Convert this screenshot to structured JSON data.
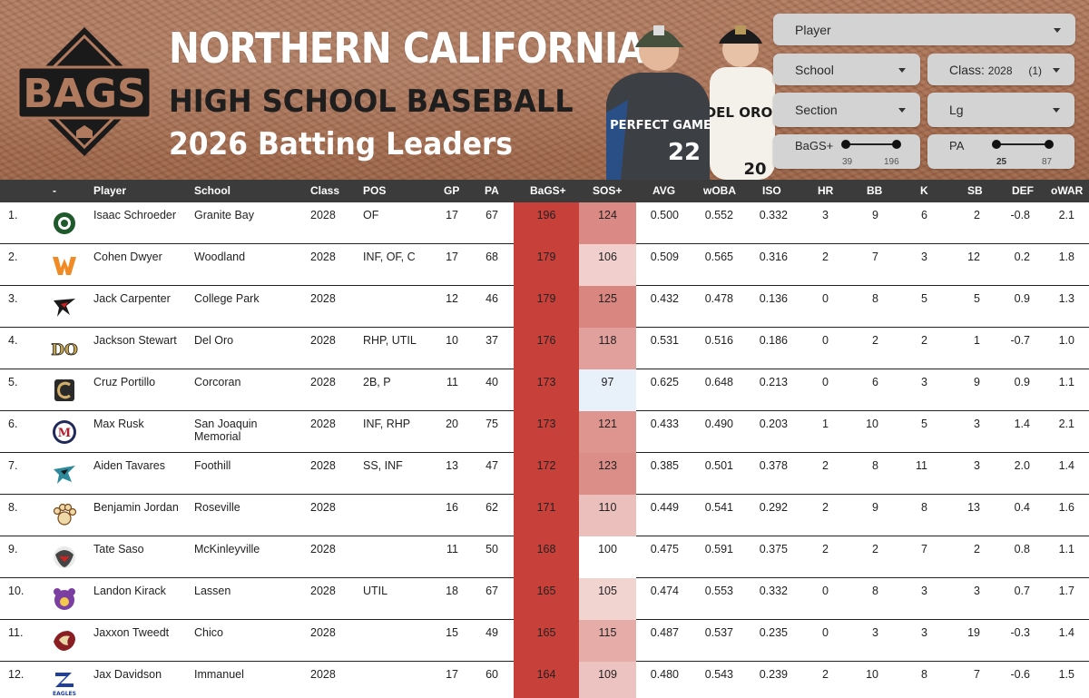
{
  "header": {
    "logo_text": "BAGS",
    "title_line1": "NORTHERN CALIFORNIA",
    "title_line2": "HIGH SCHOOL BASEBALL",
    "title_line3": "2026 Batting Leaders",
    "photo_text_left": "PERFECT GAME",
    "photo_jersey_left": "22",
    "photo_text_right": "DEL ORO",
    "photo_jersey_right": "20"
  },
  "filters": {
    "player": "Player",
    "school": "School",
    "class_label": "Class:",
    "class_value": "2028",
    "class_count": "(1)",
    "section": "Section",
    "lg": "Lg",
    "bags_slider": {
      "label": "BaGS+",
      "min": "39",
      "max": "196",
      "low": 0.0,
      "high": 1.0
    },
    "pa_slider": {
      "label": "PA",
      "min": "25",
      "max": "87",
      "low": 0.0,
      "high": 1.0
    }
  },
  "colors": {
    "header_bg": "#3b3b3b",
    "bags_fill": "#c7403a",
    "sos_high": "#d98580",
    "sos_low": "#f7e6e4",
    "sos_below": "#e8f0f9"
  },
  "table": {
    "columns": {
      "dash": "-",
      "player": "Player",
      "school": "School",
      "class": "Class",
      "pos": "POS",
      "gp": "GP",
      "pa": "PA",
      "bags": "BaGS+",
      "sos": "SOS+",
      "avg": "AVG",
      "woba": "wOBA",
      "iso": "ISO",
      "hr": "HR",
      "bb": "BB",
      "k": "K",
      "sb": "SB",
      "def": "DEF",
      "owar": "oWAR"
    },
    "rows": [
      {
        "rank": "1.",
        "icon": "granite-bay-grizzly-icon",
        "player": "Isaac Schroeder",
        "school": "Granite Bay",
        "school2": "",
        "class": "2028",
        "pos": "OF",
        "gp": "17",
        "pa": "67",
        "bags": "196",
        "sos": "124",
        "avg": "0.500",
        "woba": "0.552",
        "iso": "0.332",
        "hr": "3",
        "bb": "9",
        "k": "6",
        "sb": "2",
        "def": "-0.8",
        "owar": "2.1"
      },
      {
        "rank": "2.",
        "icon": "woodland-w-icon",
        "player": "Cohen Dwyer",
        "school": "Woodland",
        "school2": "",
        "class": "2028",
        "pos": "INF, OF, C",
        "gp": "17",
        "pa": "68",
        "bags": "179",
        "sos": "106",
        "avg": "0.509",
        "woba": "0.565",
        "iso": "0.316",
        "hr": "2",
        "bb": "7",
        "k": "3",
        "sb": "12",
        "def": "0.2",
        "owar": "1.8"
      },
      {
        "rank": "3.",
        "icon": "falcon-icon",
        "player": "Jack Carpenter",
        "school": "College Park",
        "school2": "",
        "class": "2028",
        "pos": "",
        "gp": "12",
        "pa": "46",
        "bags": "179",
        "sos": "125",
        "avg": "0.432",
        "woba": "0.478",
        "iso": "0.136",
        "hr": "0",
        "bb": "8",
        "k": "5",
        "sb": "5",
        "def": "0.9",
        "owar": "1.3"
      },
      {
        "rank": "4.",
        "icon": "del-oro-do-icon",
        "player": "Jackson Stewart",
        "school": "Del Oro",
        "school2": "",
        "class": "2028",
        "pos": "RHP, UTIL",
        "gp": "10",
        "pa": "37",
        "bags": "176",
        "sos": "118",
        "avg": "0.531",
        "woba": "0.516",
        "iso": "0.186",
        "hr": "0",
        "bb": "2",
        "k": "2",
        "sb": "1",
        "def": "-0.7",
        "owar": "1.0"
      },
      {
        "rank": "5.",
        "icon": "corcoran-c-icon",
        "player": "Cruz Portillo",
        "school": "Corcoran",
        "school2": "",
        "class": "2028",
        "pos": "2B, P",
        "gp": "11",
        "pa": "40",
        "bags": "173",
        "sos": "97",
        "avg": "0.625",
        "woba": "0.648",
        "iso": "0.213",
        "hr": "0",
        "bb": "6",
        "k": "3",
        "sb": "9",
        "def": "0.9",
        "owar": "1.1"
      },
      {
        "rank": "6.",
        "icon": "sjm-m-icon",
        "player": "Max Rusk",
        "school": "San Joaquin",
        "school2": "Memorial",
        "class": "2028",
        "pos": "INF, RHP",
        "gp": "20",
        "pa": "75",
        "bags": "173",
        "sos": "121",
        "avg": "0.433",
        "woba": "0.490",
        "iso": "0.203",
        "hr": "1",
        "bb": "10",
        "k": "5",
        "sb": "3",
        "def": "1.4",
        "owar": "2.1"
      },
      {
        "rank": "7.",
        "icon": "foothill-falcon-icon",
        "player": "Aiden Tavares",
        "school": "Foothill",
        "school2": "",
        "class": "2028",
        "pos": "SS, INF",
        "gp": "13",
        "pa": "47",
        "bags": "172",
        "sos": "123",
        "avg": "0.385",
        "woba": "0.501",
        "iso": "0.378",
        "hr": "2",
        "bb": "8",
        "k": "11",
        "sb": "3",
        "def": "2.0",
        "owar": "1.4"
      },
      {
        "rank": "8.",
        "icon": "roseville-paw-icon",
        "player": "Benjamin Jordan",
        "school": "Roseville",
        "school2": "",
        "class": "2028",
        "pos": "",
        "gp": "16",
        "pa": "62",
        "bags": "171",
        "sos": "110",
        "avg": "0.449",
        "woba": "0.541",
        "iso": "0.292",
        "hr": "2",
        "bb": "9",
        "k": "8",
        "sb": "13",
        "def": "0.4",
        "owar": "1.6"
      },
      {
        "rank": "9.",
        "icon": "mckinleyville-panther-icon",
        "player": "Tate Saso",
        "school": "McKinleyville",
        "school2": "",
        "class": "2028",
        "pos": "",
        "gp": "11",
        "pa": "50",
        "bags": "168",
        "sos": "100",
        "avg": "0.475",
        "woba": "0.591",
        "iso": "0.375",
        "hr": "2",
        "bb": "2",
        "k": "7",
        "sb": "2",
        "def": "0.8",
        "owar": "1.1"
      },
      {
        "rank": "10.",
        "icon": "lassen-grizzly-icon",
        "player": "Landon Kirack",
        "school": "Lassen",
        "school2": "",
        "class": "2028",
        "pos": "UTIL",
        "gp": "18",
        "pa": "67",
        "bags": "165",
        "sos": "105",
        "avg": "0.474",
        "woba": "0.553",
        "iso": "0.332",
        "hr": "0",
        "bb": "8",
        "k": "3",
        "sb": "3",
        "def": "0.7",
        "owar": "1.7"
      },
      {
        "rank": "11.",
        "icon": "chico-panther-icon",
        "player": "Jaxxon Tweedt",
        "school": "Chico",
        "school2": "",
        "class": "2028",
        "pos": "",
        "gp": "15",
        "pa": "49",
        "bags": "165",
        "sos": "115",
        "avg": "0.487",
        "woba": "0.537",
        "iso": "0.235",
        "hr": "0",
        "bb": "3",
        "k": "3",
        "sb": "19",
        "def": "-0.3",
        "owar": "1.4"
      },
      {
        "rank": "12.",
        "icon": "immanuel-eagles-icon",
        "player": "Jax Davidson",
        "school": "Immanuel",
        "school2": "",
        "class": "2028",
        "pos": "",
        "gp": "17",
        "pa": "60",
        "bags": "164",
        "sos": "109",
        "avg": "0.480",
        "woba": "0.543",
        "iso": "0.239",
        "hr": "2",
        "bb": "10",
        "k": "8",
        "sb": "7",
        "def": "-0.6",
        "owar": "1.5"
      }
    ]
  }
}
